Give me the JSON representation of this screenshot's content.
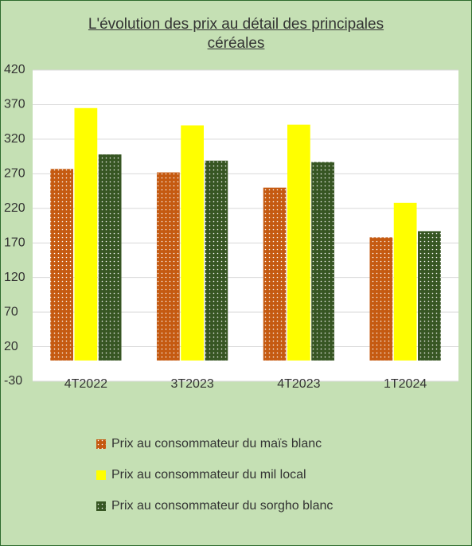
{
  "chart_data": {
    "type": "bar",
    "title": "L'évolution des prix au détail des principales céréales",
    "categories": [
      "4T2022",
      "3T2023",
      "4T2023",
      "1T2024"
    ],
    "series": [
      {
        "name": "Prix au consommateur du maïs blanc",
        "color": "#c55a11",
        "values": [
          277,
          272,
          250,
          178
        ]
      },
      {
        "name": "Prix au consommateur du mil local",
        "color": "#ffff00",
        "values": [
          365,
          340,
          341,
          228
        ]
      },
      {
        "name": "Prix au consommateur du sorgho blanc",
        "color": "#375623",
        "values": [
          298,
          289,
          287,
          187
        ]
      }
    ],
    "ylim": [
      -30,
      420
    ],
    "yticks": [
      -30,
      20,
      70,
      120,
      170,
      220,
      270,
      320,
      370,
      420
    ],
    "grid": true
  }
}
